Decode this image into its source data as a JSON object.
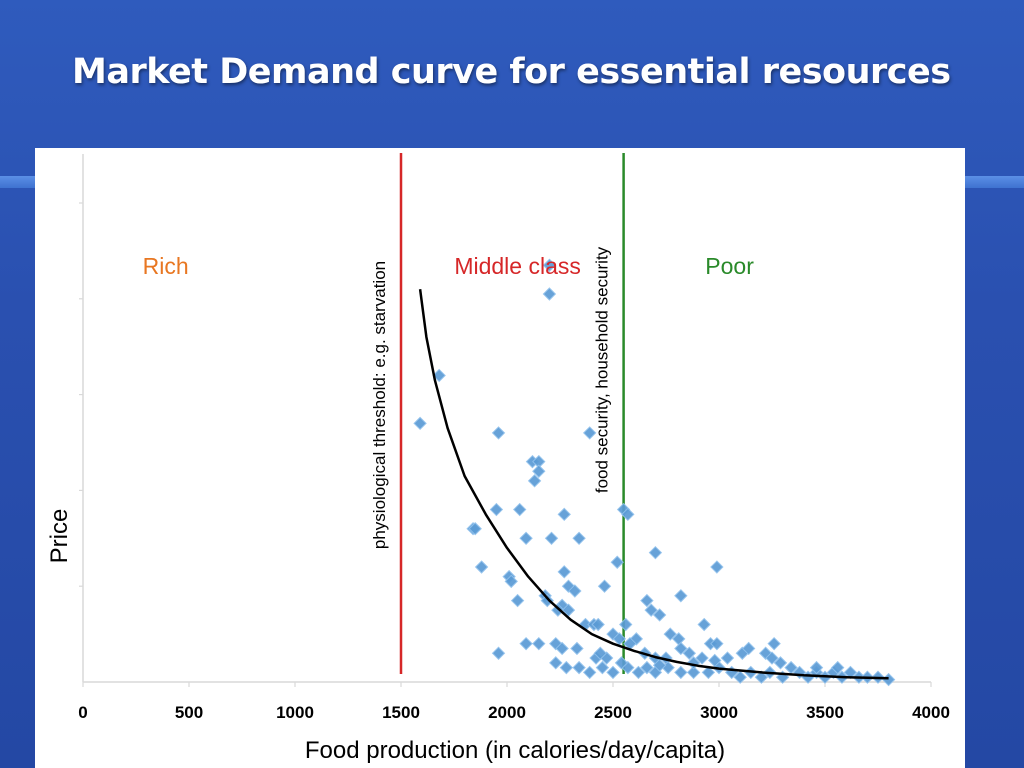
{
  "slide": {
    "title": "Market Demand curve for essential resources"
  },
  "colors": {
    "background": "#2a50b0",
    "starvation_line": "#d62728",
    "security_line": "#2a8a2a",
    "points": "#5b9bd5",
    "rich": "#e87722",
    "middle": "#d62728",
    "poor": "#2a8a2a"
  },
  "chart_data": {
    "type": "scatter",
    "xlabel": "Food production (in calories/day/capita)",
    "ylabel": "Price",
    "xlim": [
      0,
      4000
    ],
    "ylim": [
      0,
      1
    ],
    "xticks": [
      0,
      500,
      1000,
      1500,
      2000,
      2500,
      3000,
      3500,
      4000
    ],
    "grid": false,
    "thresholds": [
      {
        "x": 1500,
        "label": "physiological threshold: e.g. starvation",
        "color": "#d62728"
      },
      {
        "x": 2550,
        "label": "food security, household security",
        "color": "#2a8a2a"
      }
    ],
    "regions": [
      {
        "label": "Rich",
        "x": 390,
        "color": "#e87722"
      },
      {
        "label": "Middle class",
        "x": 2050,
        "color": "#d62728"
      },
      {
        "label": "Poor",
        "x": 3050,
        "color": "#2a8a2a"
      }
    ],
    "trend_curve": [
      [
        1590,
        0.82
      ],
      [
        1620,
        0.72
      ],
      [
        1660,
        0.63
      ],
      [
        1720,
        0.53
      ],
      [
        1800,
        0.43
      ],
      [
        1900,
        0.35
      ],
      [
        2000,
        0.28
      ],
      [
        2100,
        0.22
      ],
      [
        2200,
        0.17
      ],
      [
        2300,
        0.13
      ],
      [
        2400,
        0.1
      ],
      [
        2500,
        0.08
      ],
      [
        2600,
        0.065
      ],
      [
        2700,
        0.052
      ],
      [
        2800,
        0.042
      ],
      [
        2900,
        0.034
      ],
      [
        3000,
        0.028
      ],
      [
        3200,
        0.02
      ],
      [
        3400,
        0.014
      ],
      [
        3600,
        0.01
      ],
      [
        3800,
        0.008
      ]
    ],
    "points": [
      [
        2200,
        0.87
      ],
      [
        2200,
        0.81
      ],
      [
        1680,
        0.64
      ],
      [
        1590,
        0.54
      ],
      [
        1960,
        0.52
      ],
      [
        2390,
        0.52
      ],
      [
        2120,
        0.46
      ],
      [
        2150,
        0.46
      ],
      [
        2150,
        0.44
      ],
      [
        2130,
        0.42
      ],
      [
        1950,
        0.36
      ],
      [
        2060,
        0.36
      ],
      [
        2270,
        0.35
      ],
      [
        1840,
        0.32
      ],
      [
        1850,
        0.32
      ],
      [
        2090,
        0.3
      ],
      [
        2210,
        0.3
      ],
      [
        2340,
        0.3
      ],
      [
        1880,
        0.24
      ],
      [
        2010,
        0.22
      ],
      [
        2020,
        0.21
      ],
      [
        2270,
        0.23
      ],
      [
        2290,
        0.2
      ],
      [
        2320,
        0.19
      ],
      [
        2460,
        0.2
      ],
      [
        2520,
        0.25
      ],
      [
        2550,
        0.36
      ],
      [
        2570,
        0.35
      ],
      [
        2700,
        0.27
      ],
      [
        2990,
        0.24
      ],
      [
        2180,
        0.18
      ],
      [
        2190,
        0.17
      ],
      [
        2260,
        0.16
      ],
      [
        2050,
        0.17
      ],
      [
        2820,
        0.18
      ],
      [
        2240,
        0.15
      ],
      [
        2290,
        0.15
      ],
      [
        2660,
        0.17
      ],
      [
        2680,
        0.15
      ],
      [
        2720,
        0.14
      ],
      [
        2370,
        0.12
      ],
      [
        2410,
        0.12
      ],
      [
        2430,
        0.12
      ],
      [
        2560,
        0.12
      ],
      [
        2930,
        0.12
      ],
      [
        2090,
        0.08
      ],
      [
        2150,
        0.08
      ],
      [
        2230,
        0.08
      ],
      [
        2260,
        0.07
      ],
      [
        2330,
        0.07
      ],
      [
        2500,
        0.1
      ],
      [
        2530,
        0.09
      ],
      [
        2610,
        0.09
      ],
      [
        2770,
        0.1
      ],
      [
        2810,
        0.09
      ],
      [
        2960,
        0.08
      ],
      [
        2990,
        0.08
      ],
      [
        3260,
        0.08
      ],
      [
        1960,
        0.06
      ],
      [
        2420,
        0.05
      ],
      [
        2470,
        0.05
      ],
      [
        2580,
        0.08
      ],
      [
        2650,
        0.06
      ],
      [
        2700,
        0.05
      ],
      [
        2750,
        0.05
      ],
      [
        2820,
        0.07
      ],
      [
        2860,
        0.06
      ],
      [
        2920,
        0.05
      ],
      [
        3040,
        0.05
      ],
      [
        3110,
        0.06
      ],
      [
        3140,
        0.07
      ],
      [
        3220,
        0.06
      ],
      [
        3250,
        0.05
      ],
      [
        3290,
        0.04
      ],
      [
        2230,
        0.04
      ],
      [
        2280,
        0.03
      ],
      [
        2340,
        0.03
      ],
      [
        2390,
        0.02
      ],
      [
        2450,
        0.03
      ],
      [
        2500,
        0.02
      ],
      [
        2570,
        0.03
      ],
      [
        2620,
        0.02
      ],
      [
        2660,
        0.03
      ],
      [
        2700,
        0.02
      ],
      [
        2760,
        0.03
      ],
      [
        2820,
        0.02
      ],
      [
        2880,
        0.02
      ],
      [
        2950,
        0.02
      ],
      [
        3000,
        0.03
      ],
      [
        3060,
        0.02
      ],
      [
        3100,
        0.01
      ],
      [
        3150,
        0.02
      ],
      [
        3200,
        0.01
      ],
      [
        3240,
        0.02
      ],
      [
        3300,
        0.01
      ],
      [
        3340,
        0.03
      ],
      [
        3380,
        0.02
      ],
      [
        3420,
        0.01
      ],
      [
        3460,
        0.02
      ],
      [
        3500,
        0.01
      ],
      [
        3540,
        0.02
      ],
      [
        3580,
        0.01
      ],
      [
        3620,
        0.02
      ],
      [
        3660,
        0.01
      ],
      [
        3700,
        0.01
      ],
      [
        3750,
        0.01
      ],
      [
        3800,
        0.005
      ],
      [
        3460,
        0.03
      ],
      [
        3560,
        0.03
      ],
      [
        2980,
        0.045
      ],
      [
        2880,
        0.04
      ],
      [
        2440,
        0.06
      ],
      [
        2540,
        0.04
      ],
      [
        2720,
        0.035
      ]
    ]
  }
}
